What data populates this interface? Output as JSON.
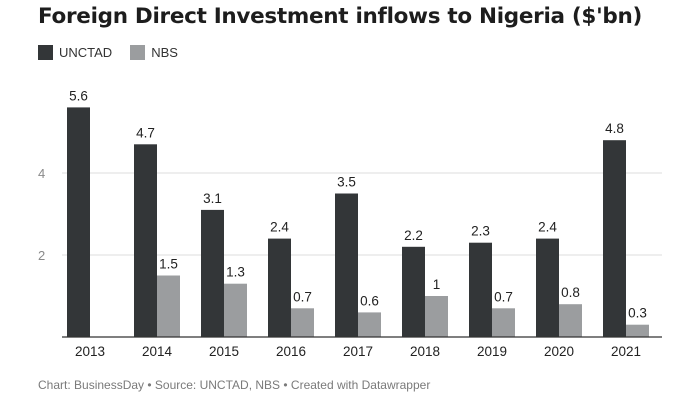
{
  "chart_data": {
    "type": "bar",
    "title": "Foreign Direct Investment inflows to Nigeria ($'bn)",
    "categories": [
      "2013",
      "2014",
      "2015",
      "2016",
      "2017",
      "2018",
      "2019",
      "2020",
      "2021"
    ],
    "series": [
      {
        "name": "UNCTAD",
        "color": "#333638",
        "values": [
          5.6,
          4.7,
          3.1,
          2.4,
          3.5,
          2.2,
          2.3,
          2.4,
          4.8
        ],
        "labels": [
          "5.6",
          "4.7",
          "3.1",
          "2.4",
          "3.5",
          "2.2",
          "2.3",
          "2.4",
          "4.8"
        ]
      },
      {
        "name": "NBS",
        "color": "#9b9d9f",
        "values": [
          null,
          1.5,
          1.3,
          0.7,
          0.6,
          1,
          0.7,
          0.8,
          0.3
        ],
        "labels": [
          "",
          "1.5",
          "1.3",
          "0.7",
          "0.6",
          "1",
          "0.7",
          "0.8",
          "0.3"
        ]
      }
    ],
    "yticks": [
      {
        "value": 2,
        "label": "2"
      },
      {
        "value": 4,
        "label": "4"
      }
    ],
    "ylim": [
      0,
      5.6
    ],
    "xlabel": "",
    "ylabel": "",
    "grid": true,
    "legend_position": "top-left"
  },
  "footer": "Chart: BusinessDay • Source: UNCTAD, NBS • Created with Datawrapper"
}
